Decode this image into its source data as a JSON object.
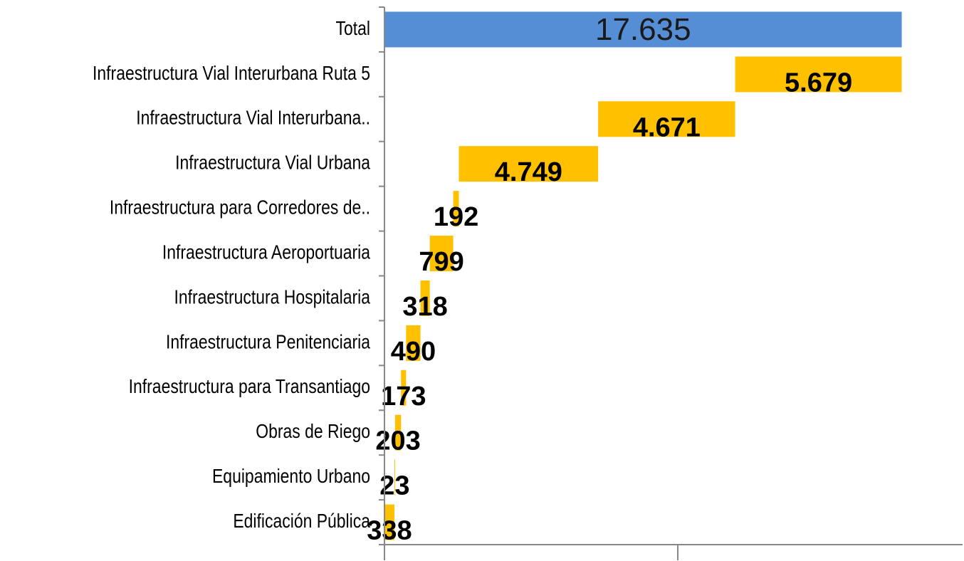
{
  "chart_data": {
    "type": "waterfall",
    "total": {
      "label": "Total",
      "value": 17635,
      "value_label": "17.635",
      "color": "#558ed5"
    },
    "categories": [
      "Infraestructura Vial Interurbana Ruta 5",
      "Infraestructura Vial Interurbana..",
      "Infraestructura Vial Urbana",
      "Infraestructura para Corredores de..",
      "Infraestructura Aeroportuaria",
      "Infraestructura Hospitalaria",
      "Infraestructura Penitenciaria",
      "Infraestructura para Transantiago",
      "Obras de Riego",
      "Equipamiento Urbano",
      "Edificación Pública"
    ],
    "values": [
      5679,
      4671,
      4749,
      192,
      799,
      318,
      490,
      173,
      203,
      23,
      338
    ],
    "value_labels": [
      "5.679",
      "4.671",
      "4.749",
      "192",
      "799",
      "318",
      "490",
      "173",
      "203",
      "23",
      "338"
    ],
    "color": "#ffc000",
    "xlim": [
      0,
      20000
    ],
    "xticks": [
      0,
      10000,
      20000
    ]
  }
}
